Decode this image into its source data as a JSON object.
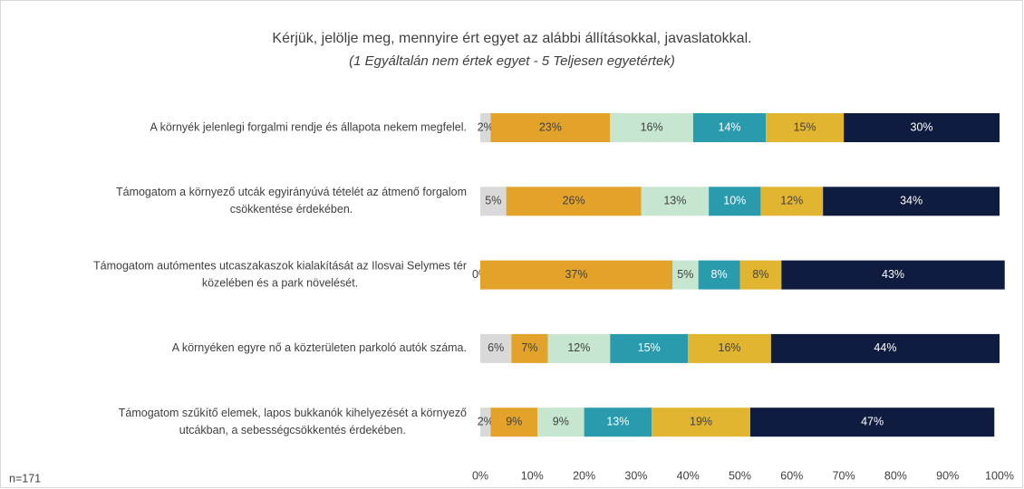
{
  "chart_data": {
    "type": "stacked_bar_horizontal",
    "title": "Kérjük, jelölje meg, mennyire ért egyet az alábbi állításokkal, javaslatokkal.",
    "subtitle": "(1 Egyáltalán nem értek egyet - 5 Teljesen egyetértek)",
    "note": "n=171",
    "categories": [
      [
        "A környék jelenlegi forgalmi rendje és állapota nekem megfelel."
      ],
      [
        "Támogatom a környező utcák egyirányúvá tételét az átmenő forgalom",
        "csökkentése érdekében."
      ],
      [
        "Támogatom autómentes utcaszakaszok kialakítását az Ilosvai Selymes tér",
        "közelében és a park növelését."
      ],
      [
        "A környéken egyre nő a közterületen parkoló autók száma."
      ],
      [
        "Támogatom szűkítő elemek, lapos bukkanók kihelyezését a környező",
        "utcákban, a sebességcsökkentés érdekében."
      ]
    ],
    "series": [
      {
        "color": "#d9d9d9",
        "values": [
          2,
          5,
          0,
          6,
          2
        ],
        "value_labels": [
          "2%",
          "5%",
          "0%",
          "6%",
          "2%"
        ]
      },
      {
        "color": "#e3a32b",
        "values": [
          23,
          26,
          37,
          7,
          9
        ],
        "value_labels": [
          "23%",
          "26%",
          "37%",
          "7%",
          "9%"
        ]
      },
      {
        "color": "#c6e6cf",
        "values": [
          16,
          13,
          5,
          12,
          9
        ],
        "value_labels": [
          "16%",
          "13%",
          "5%",
          "12%",
          "9%"
        ]
      },
      {
        "color": "#2a9bad",
        "values": [
          14,
          10,
          8,
          15,
          13
        ],
        "value_labels": [
          "14%",
          "10%",
          "8%",
          "15%",
          "13%"
        ]
      },
      {
        "color": "#e2b531",
        "values": [
          15,
          12,
          8,
          16,
          19
        ],
        "value_labels": [
          "15%",
          "12%",
          "8%",
          "16%",
          "19%"
        ]
      },
      {
        "color": "#0f1c3f",
        "values": [
          30,
          34,
          43,
          44,
          47
        ],
        "value_labels": [
          "30%",
          "34%",
          "43%",
          "44%",
          "47%"
        ]
      }
    ],
    "xlim": [
      0,
      100
    ],
    "xticks": [
      {
        "value": 0,
        "label": "0%"
      },
      {
        "value": 10,
        "label": "10%"
      },
      {
        "value": 20,
        "label": "20%"
      },
      {
        "value": 30,
        "label": "30%"
      },
      {
        "value": 40,
        "label": "40%"
      },
      {
        "value": 50,
        "label": "50%"
      },
      {
        "value": 60,
        "label": "60%"
      },
      {
        "value": 70,
        "label": "70%"
      },
      {
        "value": 80,
        "label": "80%"
      },
      {
        "value": 90,
        "label": "90%"
      },
      {
        "value": 100,
        "label": "100%"
      }
    ]
  }
}
